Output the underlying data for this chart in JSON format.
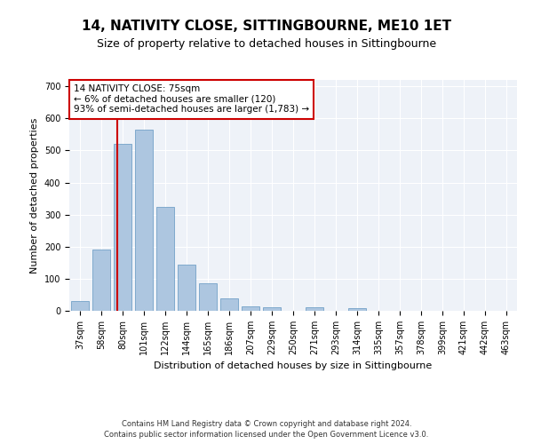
{
  "title": "14, NATIVITY CLOSE, SITTINGBOURNE, ME10 1ET",
  "subtitle": "Size of property relative to detached houses in Sittingbourne",
  "xlabel": "Distribution of detached houses by size in Sittingbourne",
  "ylabel": "Number of detached properties",
  "categories": [
    "37sqm",
    "58sqm",
    "80sqm",
    "101sqm",
    "122sqm",
    "144sqm",
    "165sqm",
    "186sqm",
    "207sqm",
    "229sqm",
    "250sqm",
    "271sqm",
    "293sqm",
    "314sqm",
    "335sqm",
    "357sqm",
    "378sqm",
    "399sqm",
    "421sqm",
    "442sqm",
    "463sqm"
  ],
  "values": [
    30,
    190,
    520,
    565,
    325,
    145,
    85,
    40,
    13,
    10,
    0,
    12,
    0,
    8,
    0,
    0,
    0,
    0,
    0,
    0,
    0
  ],
  "bar_color": "#adc6e0",
  "bar_edge_color": "#6096c0",
  "annotation_title": "14 NATIVITY CLOSE: 75sqm",
  "annotation_line1": "← 6% of detached houses are smaller (120)",
  "annotation_line2": "93% of semi-detached houses are larger (1,783) →",
  "annotation_box_color": "#ffffff",
  "annotation_box_edge_color": "#cc0000",
  "vline_color": "#cc0000",
  "ylim": [
    0,
    720
  ],
  "yticks": [
    0,
    100,
    200,
    300,
    400,
    500,
    600,
    700
  ],
  "bg_color": "#eef2f8",
  "grid_color": "#ffffff",
  "footer1": "Contains HM Land Registry data © Crown copyright and database right 2024.",
  "footer2": "Contains public sector information licensed under the Open Government Licence v3.0.",
  "title_fontsize": 11,
  "subtitle_fontsize": 9,
  "axis_label_fontsize": 8,
  "tick_fontsize": 7
}
